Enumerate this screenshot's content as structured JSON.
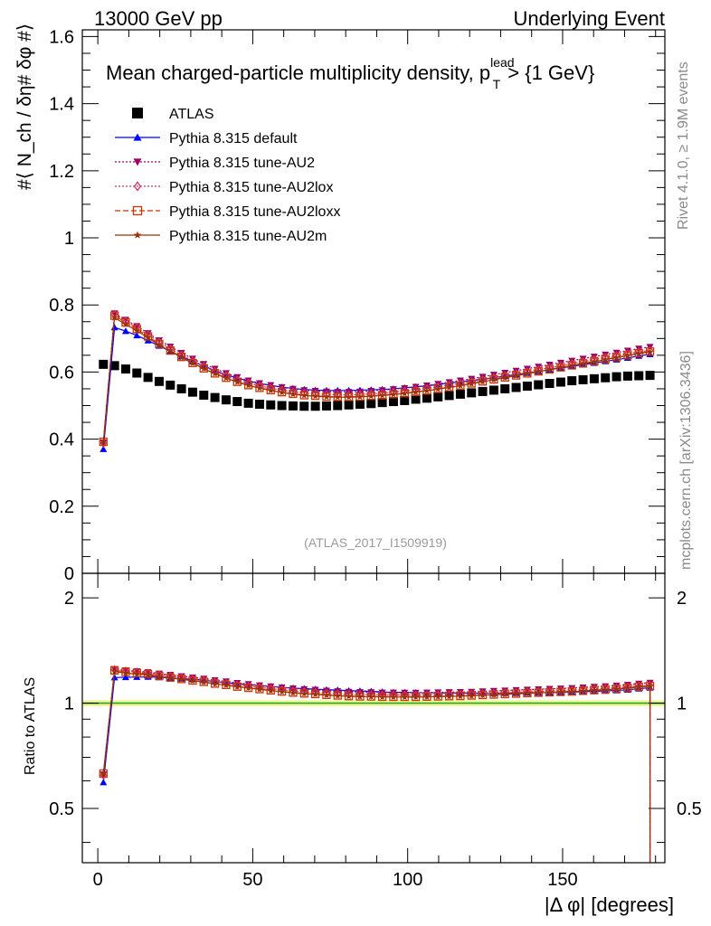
{
  "header": {
    "left": "13000 GeV pp",
    "right": "Underlying Event"
  },
  "side": {
    "rivet": "Rivet 4.1.0, ≥ 1.9M events",
    "mcplots": "mcplots.cern.ch [arXiv:1306.3436]"
  },
  "chart_data": {
    "type": "scatter",
    "title": "Mean charged-particle multiplicity density, p_T^lead > {1 GeV}",
    "title_main": "Mean charged-particle multiplicity density, p",
    "title_sup": "lead",
    "title_sub": "T",
    "title_tail": " > {1 GeV}",
    "analysis": "(ATLAS_2017_I1509919)",
    "ylabel_main": "#⟨ N_ch / δη# δφ #⟩",
    "ylabel_ratio": "Ratio to ATLAS",
    "xlabel": "|Δ φ| [degrees]",
    "xlim": [
      -5,
      183
    ],
    "ylim_main": [
      0,
      1.62
    ],
    "ylim_ratio": [
      0.35,
      2.35
    ],
    "xticks": [
      0,
      50,
      100,
      150
    ],
    "yticks_main": [
      0,
      0.2,
      0.4,
      0.6,
      0.8,
      1,
      1.2,
      1.4,
      1.6
    ],
    "yticks_main_labels": [
      "0",
      "0.2",
      "0.4",
      "0.6",
      "0.8",
      "1",
      "1.2",
      "1.4",
      "1.6"
    ],
    "yticks_ratio": [
      0.5,
      1,
      2
    ],
    "yticks_ratio_labels": [
      "0.5",
      "1",
      "2"
    ],
    "ratio_band": 0.02,
    "legend_position": "top-left",
    "x": [
      1.8,
      5.4,
      9.0,
      12.6,
      16.2,
      19.8,
      23.4,
      27.0,
      30.6,
      34.2,
      37.8,
      41.4,
      45.0,
      48.6,
      52.2,
      55.8,
      59.4,
      63.0,
      66.6,
      70.2,
      73.8,
      77.4,
      81.0,
      84.6,
      88.2,
      91.8,
      95.4,
      99.0,
      102.6,
      106.2,
      109.8,
      113.4,
      117.0,
      120.6,
      124.2,
      127.8,
      131.4,
      135.0,
      138.6,
      142.2,
      145.8,
      149.4,
      153.0,
      156.6,
      160.2,
      163.8,
      167.4,
      171.0,
      174.6,
      178.2
    ],
    "series": [
      {
        "name": "ATLAS",
        "color": "#000000",
        "marker": "square",
        "line": "none",
        "values": [
          0.623,
          0.619,
          0.609,
          0.597,
          0.584,
          0.572,
          0.561,
          0.55,
          0.54,
          0.531,
          0.524,
          0.517,
          0.512,
          0.507,
          0.504,
          0.502,
          0.5,
          0.499,
          0.498,
          0.498,
          0.499,
          0.5,
          0.502,
          0.504,
          0.506,
          0.509,
          0.512,
          0.515,
          0.519,
          0.522,
          0.526,
          0.53,
          0.534,
          0.538,
          0.542,
          0.546,
          0.55,
          0.554,
          0.558,
          0.562,
          0.566,
          0.57,
          0.574,
          0.577,
          0.58,
          0.583,
          0.586,
          0.588,
          0.589,
          0.59
        ]
      },
      {
        "name": "Pythia 8.315 default",
        "color": "#0000ff",
        "marker": "triangle-up",
        "line": "solid",
        "values": [
          0.37,
          0.733,
          0.722,
          0.709,
          0.694,
          0.678,
          0.662,
          0.646,
          0.632,
          0.618,
          0.604,
          0.592,
          0.582,
          0.573,
          0.566,
          0.56,
          0.555,
          0.551,
          0.548,
          0.546,
          0.545,
          0.545,
          0.545,
          0.546,
          0.547,
          0.548,
          0.55,
          0.553,
          0.556,
          0.559,
          0.563,
          0.567,
          0.571,
          0.575,
          0.579,
          0.583,
          0.588,
          0.592,
          0.597,
          0.602,
          0.607,
          0.612,
          0.617,
          0.622,
          0.627,
          0.632,
          0.637,
          0.642,
          0.648,
          0.653
        ]
      },
      {
        "name": "Pythia 8.315 tune-AU2",
        "color": "#990066",
        "marker": "triangle-down",
        "line": "dotted",
        "values": [
          0.39,
          0.775,
          0.756,
          0.737,
          0.716,
          0.695,
          0.676,
          0.657,
          0.64,
          0.624,
          0.61,
          0.597,
          0.585,
          0.575,
          0.567,
          0.561,
          0.555,
          0.55,
          0.546,
          0.544,
          0.542,
          0.541,
          0.541,
          0.542,
          0.544,
          0.546,
          0.549,
          0.552,
          0.556,
          0.56,
          0.565,
          0.57,
          0.575,
          0.58,
          0.586,
          0.592,
          0.598,
          0.604,
          0.61,
          0.616,
          0.622,
          0.628,
          0.634,
          0.64,
          0.646,
          0.652,
          0.658,
          0.664,
          0.67,
          0.675
        ]
      },
      {
        "name": "Pythia 8.315 tune-AU2lox",
        "color": "#cc3366",
        "marker": "diamond-open",
        "line": "dotted",
        "values": [
          0.388,
          0.772,
          0.752,
          0.733,
          0.711,
          0.69,
          0.67,
          0.651,
          0.633,
          0.617,
          0.602,
          0.589,
          0.577,
          0.567,
          0.559,
          0.552,
          0.546,
          0.541,
          0.537,
          0.535,
          0.533,
          0.532,
          0.532,
          0.533,
          0.535,
          0.537,
          0.54,
          0.543,
          0.547,
          0.551,
          0.556,
          0.561,
          0.566,
          0.571,
          0.577,
          0.583,
          0.589,
          0.595,
          0.601,
          0.607,
          0.613,
          0.619,
          0.625,
          0.631,
          0.637,
          0.643,
          0.649,
          0.655,
          0.66,
          0.664
        ]
      },
      {
        "name": "Pythia 8.315 tune-AU2loxx",
        "color": "#cc3300",
        "marker": "square-open",
        "line": "dashed",
        "values": [
          0.392,
          0.768,
          0.748,
          0.728,
          0.706,
          0.684,
          0.664,
          0.645,
          0.627,
          0.611,
          0.596,
          0.583,
          0.571,
          0.561,
          0.553,
          0.546,
          0.54,
          0.535,
          0.531,
          0.529,
          0.527,
          0.526,
          0.526,
          0.527,
          0.529,
          0.531,
          0.534,
          0.537,
          0.541,
          0.545,
          0.55,
          0.555,
          0.56,
          0.566,
          0.572,
          0.578,
          0.584,
          0.59,
          0.596,
          0.602,
          0.608,
          0.614,
          0.62,
          0.626,
          0.632,
          0.638,
          0.644,
          0.65,
          0.656,
          0.661
        ]
      },
      {
        "name": "Pythia 8.315 tune-AU2m",
        "color": "#993300",
        "marker": "star",
        "line": "solid",
        "values": [
          0.392,
          0.762,
          0.742,
          0.723,
          0.702,
          0.681,
          0.662,
          0.643,
          0.626,
          0.61,
          0.595,
          0.582,
          0.57,
          0.56,
          0.552,
          0.545,
          0.539,
          0.534,
          0.53,
          0.528,
          0.526,
          0.525,
          0.525,
          0.526,
          0.528,
          0.53,
          0.533,
          0.536,
          0.54,
          0.544,
          0.549,
          0.554,
          0.559,
          0.565,
          0.571,
          0.577,
          0.583,
          0.589,
          0.595,
          0.601,
          0.607,
          0.613,
          0.619,
          0.625,
          0.631,
          0.637,
          0.643,
          0.649,
          0.655,
          0.66
        ]
      }
    ]
  }
}
